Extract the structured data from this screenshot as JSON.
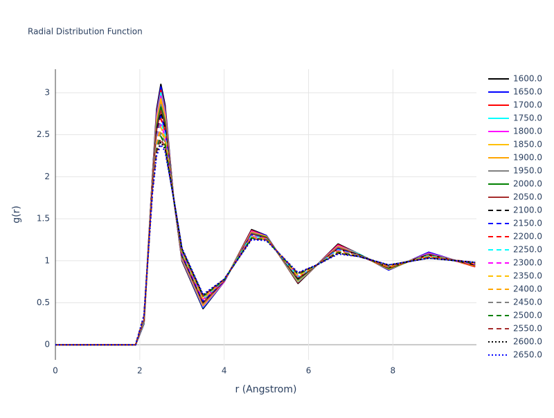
{
  "chart_data": {
    "type": "line",
    "title": "Radial Distribution Function",
    "xlabel": "r (Angstrom)",
    "ylabel": "g(r)",
    "xlim": [
      0,
      9.98
    ],
    "ylim": [
      -0.18,
      3.28
    ],
    "xticks": [
      0,
      2,
      4,
      6,
      8
    ],
    "yticks": [
      0,
      0.5,
      1,
      1.5,
      2,
      2.5,
      3
    ],
    "grid": true,
    "x": [
      0,
      1.9,
      2.1,
      2.3,
      2.4,
      2.5,
      2.6,
      2.8,
      3.0,
      3.5,
      4.0,
      4.65,
      5.0,
      5.75,
      6.2,
      6.7,
      7.2,
      7.9,
      8.85,
      9.95
    ],
    "series": [
      {
        "name": "1600.0",
        "color": "#000000",
        "dash": "solid",
        "values": [
          0,
          0,
          0.25,
          2.0,
          2.8,
          3.1,
          2.85,
          1.75,
          1.0,
          0.43,
          0.75,
          1.37,
          1.3,
          0.73,
          0.95,
          1.2,
          1.08,
          0.89,
          1.1,
          0.93
        ]
      },
      {
        "name": "1650.0",
        "color": "#0000ff",
        "dash": "solid",
        "values": [
          0,
          0,
          0.25,
          1.99,
          2.77,
          3.07,
          2.82,
          1.75,
          1.01,
          0.44,
          0.75,
          1.36,
          1.3,
          0.74,
          0.95,
          1.19,
          1.08,
          0.89,
          1.1,
          0.93
        ]
      },
      {
        "name": "1700.0",
        "color": "#ff0000",
        "dash": "solid",
        "values": [
          0,
          0,
          0.26,
          1.98,
          2.75,
          3.03,
          2.8,
          1.75,
          1.01,
          0.45,
          0.75,
          1.36,
          1.29,
          0.74,
          0.95,
          1.19,
          1.08,
          0.9,
          1.09,
          0.93
        ]
      },
      {
        "name": "1750.0",
        "color": "#00ffff",
        "dash": "solid",
        "values": [
          0,
          0,
          0.26,
          1.97,
          2.72,
          3.0,
          2.77,
          1.75,
          1.02,
          0.45,
          0.75,
          1.35,
          1.29,
          0.75,
          0.95,
          1.18,
          1.08,
          0.9,
          1.09,
          0.94
        ]
      },
      {
        "name": "1800.0",
        "color": "#ff00ff",
        "dash": "solid",
        "values": [
          0,
          0,
          0.27,
          1.96,
          2.7,
          2.96,
          2.75,
          1.75,
          1.03,
          0.46,
          0.75,
          1.35,
          1.29,
          0.76,
          0.95,
          1.18,
          1.07,
          0.9,
          1.09,
          0.94
        ]
      },
      {
        "name": "1850.0",
        "color": "#ffc000",
        "dash": "solid",
        "values": [
          0,
          0,
          0.27,
          1.95,
          2.67,
          2.93,
          2.72,
          1.75,
          1.04,
          0.47,
          0.76,
          1.34,
          1.29,
          0.76,
          0.95,
          1.17,
          1.07,
          0.9,
          1.08,
          0.94
        ]
      },
      {
        "name": "1900.0",
        "color": "#ffa500",
        "dash": "solid",
        "values": [
          0,
          0,
          0.28,
          1.94,
          2.64,
          2.89,
          2.69,
          1.75,
          1.04,
          0.48,
          0.76,
          1.34,
          1.28,
          0.77,
          0.95,
          1.17,
          1.07,
          0.91,
          1.08,
          0.94
        ]
      },
      {
        "name": "1950.0",
        "color": "#808080",
        "dash": "solid",
        "values": [
          0,
          0,
          0.28,
          1.93,
          2.62,
          2.86,
          2.67,
          1.75,
          1.05,
          0.49,
          0.76,
          1.33,
          1.28,
          0.77,
          0.95,
          1.16,
          1.07,
          0.91,
          1.08,
          0.95
        ]
      },
      {
        "name": "2000.0",
        "color": "#008000",
        "dash": "solid",
        "values": [
          0,
          0,
          0.29,
          1.92,
          2.59,
          2.83,
          2.64,
          1.75,
          1.06,
          0.5,
          0.76,
          1.32,
          1.28,
          0.78,
          0.95,
          1.15,
          1.07,
          0.91,
          1.07,
          0.95
        ]
      },
      {
        "name": "2050.0",
        "color": "#a52a2a",
        "dash": "solid",
        "values": [
          0,
          0,
          0.29,
          1.91,
          2.56,
          2.79,
          2.61,
          1.75,
          1.06,
          0.5,
          0.76,
          1.32,
          1.27,
          0.79,
          0.95,
          1.15,
          1.07,
          0.92,
          1.07,
          0.95
        ]
      },
      {
        "name": "2100.0",
        "color": "#000000",
        "dash": "dash",
        "values": [
          0,
          0,
          0.3,
          1.9,
          2.54,
          2.76,
          2.59,
          1.75,
          1.07,
          0.51,
          0.76,
          1.31,
          1.27,
          0.79,
          0.95,
          1.14,
          1.07,
          0.92,
          1.07,
          0.95
        ]
      },
      {
        "name": "2150.0",
        "color": "#0000ff",
        "dash": "dash",
        "values": [
          0,
          0,
          0.3,
          1.9,
          2.51,
          2.72,
          2.56,
          1.75,
          1.08,
          0.52,
          0.76,
          1.31,
          1.27,
          0.8,
          0.95,
          1.14,
          1.06,
          0.92,
          1.06,
          0.96
        ]
      },
      {
        "name": "2200.0",
        "color": "#ff0000",
        "dash": "dash",
        "values": [
          0,
          0,
          0.31,
          1.89,
          2.49,
          2.69,
          2.54,
          1.75,
          1.09,
          0.53,
          0.77,
          1.3,
          1.27,
          0.8,
          0.95,
          1.13,
          1.06,
          0.92,
          1.06,
          0.96
        ]
      },
      {
        "name": "2250.0",
        "color": "#00ffff",
        "dash": "dash",
        "values": [
          0,
          0,
          0.31,
          1.88,
          2.46,
          2.65,
          2.51,
          1.75,
          1.09,
          0.54,
          0.77,
          1.3,
          1.26,
          0.81,
          0.95,
          1.13,
          1.06,
          0.93,
          1.06,
          0.96
        ]
      },
      {
        "name": "2300.0",
        "color": "#ff00ff",
        "dash": "dash",
        "values": [
          0,
          0,
          0.32,
          1.87,
          2.43,
          2.62,
          2.48,
          1.75,
          1.1,
          0.54,
          0.77,
          1.29,
          1.26,
          0.82,
          0.95,
          1.12,
          1.06,
          0.93,
          1.05,
          0.96
        ]
      },
      {
        "name": "2350.0",
        "color": "#ffc000",
        "dash": "dash",
        "values": [
          0,
          0,
          0.32,
          1.86,
          2.41,
          2.59,
          2.46,
          1.75,
          1.11,
          0.55,
          0.77,
          1.28,
          1.26,
          0.82,
          0.95,
          1.11,
          1.06,
          0.93,
          1.05,
          0.97
        ]
      },
      {
        "name": "2400.0",
        "color": "#ffa500",
        "dash": "dash",
        "values": [
          0,
          0,
          0.33,
          1.85,
          2.38,
          2.55,
          2.43,
          1.75,
          1.11,
          0.56,
          0.77,
          1.28,
          1.25,
          0.83,
          0.95,
          1.11,
          1.06,
          0.94,
          1.05,
          0.97
        ]
      },
      {
        "name": "2450.0",
        "color": "#808080",
        "dash": "dash",
        "values": [
          0,
          0,
          0.33,
          1.84,
          2.36,
          2.52,
          2.41,
          1.75,
          1.12,
          0.57,
          0.77,
          1.27,
          1.25,
          0.84,
          0.95,
          1.1,
          1.06,
          0.94,
          1.04,
          0.97
        ]
      },
      {
        "name": "2500.0",
        "color": "#008000",
        "dash": "dash",
        "values": [
          0,
          0,
          0.34,
          1.83,
          2.33,
          2.48,
          2.38,
          1.75,
          1.13,
          0.58,
          0.77,
          1.27,
          1.25,
          0.84,
          0.95,
          1.1,
          1.05,
          0.94,
          1.04,
          0.97
        ]
      },
      {
        "name": "2550.0",
        "color": "#a52a2a",
        "dash": "dash",
        "values": [
          0,
          0,
          0.34,
          1.82,
          2.3,
          2.45,
          2.35,
          1.75,
          1.14,
          0.58,
          0.78,
          1.26,
          1.25,
          0.85,
          0.95,
          1.09,
          1.05,
          0.94,
          1.04,
          0.98
        ]
      },
      {
        "name": "2600.0",
        "color": "#000000",
        "dash": "dot",
        "values": [
          0,
          0,
          0.35,
          1.81,
          2.28,
          2.41,
          2.33,
          1.75,
          1.14,
          0.59,
          0.78,
          1.26,
          1.24,
          0.85,
          0.95,
          1.09,
          1.05,
          0.95,
          1.03,
          0.98
        ]
      },
      {
        "name": "2650.0",
        "color": "#0000ff",
        "dash": "dot",
        "values": [
          0,
          0,
          0.35,
          1.8,
          2.25,
          2.38,
          2.3,
          1.75,
          1.15,
          0.6,
          0.78,
          1.25,
          1.24,
          0.86,
          0.95,
          1.08,
          1.05,
          0.95,
          1.03,
          0.98
        ]
      }
    ]
  }
}
